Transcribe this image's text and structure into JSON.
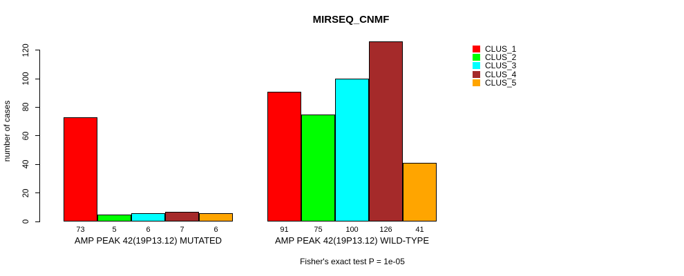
{
  "title": "MIRSEQ_CNMF",
  "chart_data": {
    "type": "bar",
    "title": "MIRSEQ_CNMF",
    "ylabel": "number of cases",
    "ylim": [
      0,
      130
    ],
    "yticks": [
      0,
      20,
      40,
      60,
      80,
      100,
      120
    ],
    "grid": false,
    "legend_position": "right",
    "bar_value_labels": true,
    "categories": [
      "AMP PEAK 42(19P13.12) MUTATED",
      "AMP PEAK 42(19P13.12) WILD-TYPE"
    ],
    "series": [
      {
        "name": "CLUS_1",
        "color": "#FF0000",
        "values": [
          73,
          91
        ]
      },
      {
        "name": "CLUS_2",
        "color": "#00FF00",
        "values": [
          5,
          75
        ]
      },
      {
        "name": "CLUS_3",
        "color": "#00FFFF",
        "values": [
          6,
          100
        ]
      },
      {
        "name": "CLUS_4",
        "color": "#A52A2A",
        "values": [
          7,
          126
        ]
      },
      {
        "name": "CLUS_5",
        "color": "#FFA500",
        "values": [
          6,
          41
        ]
      }
    ],
    "annotation": "Fisher's exact test P = 1e-05"
  }
}
